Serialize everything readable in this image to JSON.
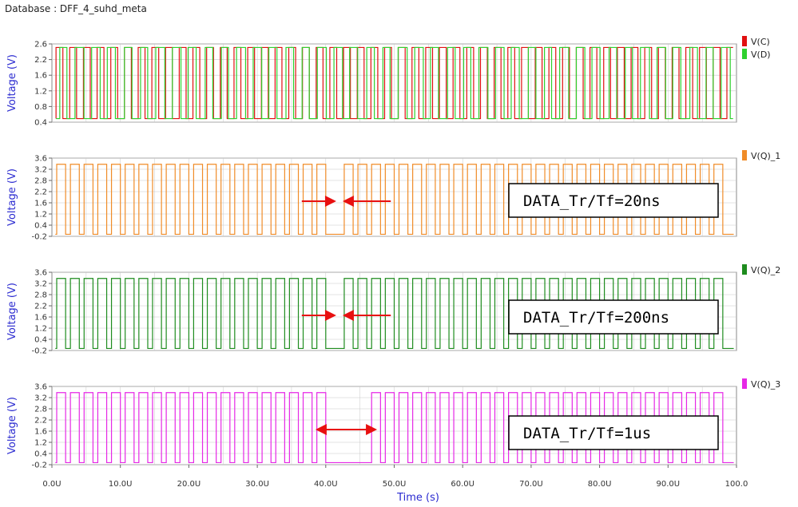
{
  "header": {
    "database_label": "Database : DFF_4_suhd_meta"
  },
  "colors": {
    "VC": "#e01010",
    "VD": "#2ed12e",
    "VQ_1": "#f08c28",
    "VQ_2": "#1e8c1e",
    "VQ_3": "#e628e6",
    "grid": "#c8c8c8",
    "axis_label": "#2a2ad0",
    "arrow": "#e81010"
  },
  "chart_data": [
    {
      "type": "line",
      "ylabel": "Voltage (V)",
      "ylim": [
        0.4,
        2.6
      ],
      "yticks": [
        "2.6",
        "2.2",
        "1.6",
        "1.2",
        "0.8",
        "0.4"
      ],
      "xlim": [
        0,
        100
      ],
      "series": [
        {
          "name": "V(C)",
          "color_key": "VC",
          "kind": "clock",
          "low": 0.5,
          "high": 2.5,
          "period_us": 2.0
        },
        {
          "name": "V(D)",
          "color_key": "VD",
          "kind": "data",
          "low": 0.5,
          "high": 2.5,
          "period_us": 2.08
        }
      ]
    },
    {
      "type": "line",
      "ylabel": "Voltage (V)",
      "ylim": [
        -0.2,
        3.6
      ],
      "yticks": [
        "3.6",
        "3.2",
        "2.8",
        "2.2",
        "1.6",
        "1.2",
        "0.4",
        "-0.2"
      ],
      "xlim": [
        0,
        100
      ],
      "series": [
        {
          "name": "V(Q)_1",
          "color_key": "VQ_1",
          "kind": "pulse",
          "low": -0.1,
          "high": 3.3,
          "period_us": 2.0,
          "gap_us": [
            40.5,
            41.5
          ]
        }
      ],
      "annotation": "DATA_Tr/Tf=20ns",
      "arrows": {
        "type": "inward",
        "x_us": [
          36.5,
          42.0,
          49.5
        ]
      }
    },
    {
      "type": "line",
      "ylabel": "Voltage (V)",
      "ylim": [
        -0.2,
        3.6
      ],
      "yticks": [
        "3.6",
        "3.2",
        "2.8",
        "2.2",
        "1.6",
        "1.2",
        "0.4",
        "-0.2"
      ],
      "xlim": [
        0,
        100
      ],
      "series": [
        {
          "name": "V(Q)_2",
          "color_key": "VQ_2",
          "kind": "pulse",
          "low": -0.1,
          "high": 3.3,
          "period_us": 2.0,
          "gap_us": [
            40.5,
            41.5
          ]
        }
      ],
      "annotation": "DATA_Tr/Tf=200ns",
      "arrows": {
        "type": "inward",
        "x_us": [
          36.5,
          42.0,
          49.5
        ]
      }
    },
    {
      "type": "line",
      "ylabel": "Voltage (V)",
      "ylim": [
        -0.2,
        3.6
      ],
      "yticks": [
        "3.6",
        "3.2",
        "2.8",
        "2.2",
        "1.6",
        "1.2",
        "0.4",
        "-0.2"
      ],
      "xlim": [
        0,
        100
      ],
      "xlabel": "Time (s)",
      "xticks": [
        "0.0U",
        "10.0U",
        "20.0U",
        "30.0U",
        "40.0U",
        "50.0U",
        "60.0U",
        "70.0U",
        "80.0U",
        "90.0U",
        "100.0"
      ],
      "series": [
        {
          "name": "V(Q)_3",
          "color_key": "VQ_3",
          "kind": "pulse",
          "low": -0.1,
          "high": 3.3,
          "period_us": 2.0,
          "gap_us": [
            38.8,
            46.7
          ]
        }
      ],
      "annotation": "DATA_Tr/Tf=1us",
      "arrows": {
        "type": "double",
        "x_us": [
          38.5,
          47.5
        ]
      }
    }
  ]
}
